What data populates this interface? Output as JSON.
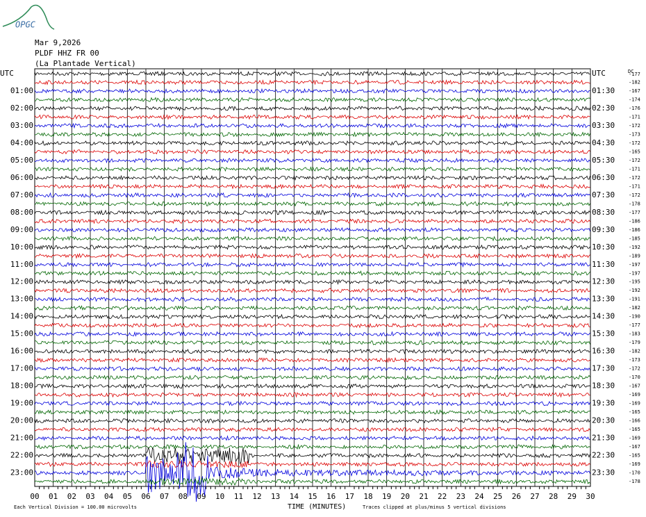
{
  "header": {
    "logo": "OPGC",
    "date": "Mar 9,2026",
    "station": "PLDF HHZ FR 00",
    "location": "(La Plantade Vertical)"
  },
  "left_labels": [
    "UTC",
    "01:00",
    "02:00",
    "03:00",
    "04:00",
    "05:00",
    "06:00",
    "07:00",
    "08:00",
    "09:00",
    "10:00",
    "11:00",
    "12:00",
    "13:00",
    "14:00",
    "15:00",
    "16:00",
    "17:00",
    "18:00",
    "19:00",
    "20:00",
    "21:00",
    "22:00",
    "23:00"
  ],
  "right_labels": [
    "UTC",
    "01:30",
    "02:30",
    "03:30",
    "04:30",
    "05:30",
    "06:30",
    "07:30",
    "08:30",
    "09:30",
    "10:30",
    "11:30",
    "12:30",
    "13:30",
    "14:30",
    "15:30",
    "16:30",
    "17:30",
    "18:30",
    "19:30",
    "20:30",
    "21:30",
    "22:30",
    "23:30"
  ],
  "dc_label": "DC",
  "dc_values": [
    -177,
    -182,
    -167,
    -174,
    -176,
    -171,
    -172,
    -173,
    -172,
    -165,
    -172,
    -171,
    -172,
    -171,
    -172,
    -178,
    -177,
    -186,
    -186,
    -185,
    -192,
    -189,
    -197,
    -197,
    -195,
    -192,
    -191,
    -182,
    -190,
    -177,
    -183,
    -179,
    -182,
    -173,
    -172,
    -170,
    -167,
    -169,
    -169,
    -165,
    -166,
    -165,
    -169,
    -167,
    -165,
    -169,
    -170,
    -178
  ],
  "x_ticks": [
    "00",
    "01",
    "02",
    "03",
    "04",
    "05",
    "06",
    "07",
    "08",
    "09",
    "10",
    "11",
    "12",
    "13",
    "14",
    "15",
    "16",
    "17",
    "18",
    "19",
    "20",
    "21",
    "22",
    "23",
    "24",
    "25",
    "26",
    "27",
    "28",
    "29",
    "30"
  ],
  "x_label": "TIME (MINUTES)",
  "footer": {
    "division": "Each Vertical Division =  100.00 microvolts",
    "clip": "Traces clipped at plus/minus 5 vertical divisions"
  }
}
